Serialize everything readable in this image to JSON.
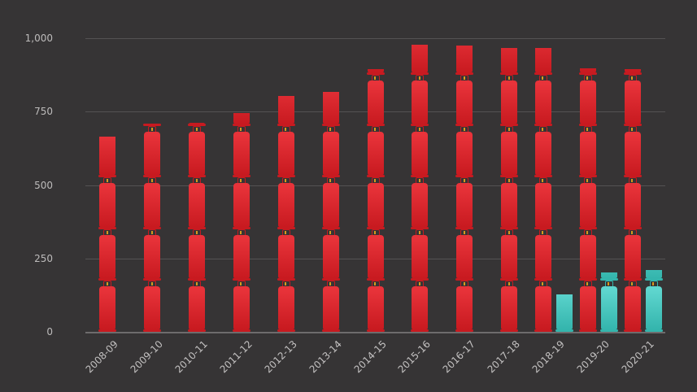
{
  "chart_data": {
    "type": "bar",
    "style": "pictogram (stacked gas cylinder icons)",
    "title": "",
    "xlabel": "",
    "ylabel": "",
    "ylim": [
      0,
      1000
    ],
    "yticks": [
      "0",
      "250",
      "500",
      "750",
      "1,000"
    ],
    "grid": true,
    "legend": "none",
    "categories": [
      "2008-09",
      "2009-10",
      "2010-11",
      "2011-12",
      "2012-13",
      "2013-14",
      "2014-15",
      "2015-16",
      "2016-17",
      "2017-18",
      "2018-19",
      "2019-20",
      "2020-21"
    ],
    "series": [
      {
        "name": "Series 1",
        "color": "#e3252a",
        "values": [
          665,
          709,
          712,
          745,
          803,
          817,
          895,
          978,
          975,
          967,
          967,
          897,
          895
        ]
      },
      {
        "name": "Series 2",
        "color": "#3fc9c1",
        "values": [
          null,
          null,
          null,
          null,
          null,
          null,
          null,
          null,
          null,
          null,
          127,
          202,
          210
        ]
      }
    ]
  },
  "colors": {
    "background": "#363435",
    "red": "#e3252a",
    "cyan": "#3fc9c1",
    "grid": "#545253",
    "text": "#bdbbbb"
  }
}
